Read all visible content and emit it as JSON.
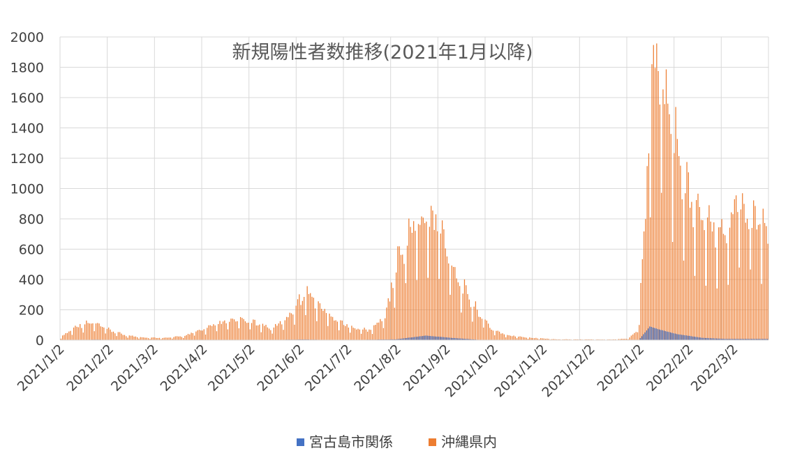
{
  "chart_data": {
    "type": "bar",
    "title": "新規陽性者数推移(2021年1月以降)",
    "xlabel": "",
    "ylabel": "",
    "ylim": [
      0,
      2000
    ],
    "yticks": [
      0,
      200,
      400,
      600,
      800,
      1000,
      1200,
      1400,
      1600,
      1800,
      2000
    ],
    "grid": true,
    "legend_position": "bottom",
    "x_start": "2021-01-02",
    "x_tick_labels": [
      "2021/1/2",
      "2021/2/2",
      "2021/3/2",
      "2021/4/2",
      "2021/5/2",
      "2021/6/2",
      "2021/7/2",
      "2021/8/2",
      "2021/9/2",
      "2021/10/2",
      "2021/11/2",
      "2021/12/2",
      "2022/1/2",
      "2022/2/2",
      "2022/3/2"
    ],
    "series": [
      {
        "name": "宮古島市関係",
        "color": "#4472c4",
        "profile": [
          [
            "2021-01-02",
            0
          ],
          [
            "2021-01-25",
            3
          ],
          [
            "2021-02-10",
            0
          ],
          [
            "2021-05-20",
            2
          ],
          [
            "2021-06-05",
            4
          ],
          [
            "2021-06-25",
            0
          ],
          [
            "2021-08-01",
            5
          ],
          [
            "2021-08-20",
            30
          ],
          [
            "2021-09-05",
            15
          ],
          [
            "2021-09-25",
            0
          ],
          [
            "2022-01-01",
            0
          ],
          [
            "2022-01-08",
            90
          ],
          [
            "2022-01-14",
            70
          ],
          [
            "2022-01-25",
            40
          ],
          [
            "2022-02-10",
            15
          ],
          [
            "2022-02-25",
            8
          ],
          [
            "2022-03-15",
            8
          ],
          [
            "2022-03-23",
            8
          ]
        ]
      },
      {
        "name": "沖縄県内",
        "color": "#ed7d31",
        "profile": [
          [
            "2021-01-02",
            20
          ],
          [
            "2021-01-12",
            90
          ],
          [
            "2021-01-22",
            110
          ],
          [
            "2021-02-02",
            60
          ],
          [
            "2021-02-12",
            30
          ],
          [
            "2021-02-25",
            15
          ],
          [
            "2021-03-10",
            15
          ],
          [
            "2021-03-20",
            25
          ],
          [
            "2021-04-02",
            70
          ],
          [
            "2021-04-15",
            115
          ],
          [
            "2021-04-25",
            130
          ],
          [
            "2021-05-08",
            100
          ],
          [
            "2021-05-15",
            70
          ],
          [
            "2021-05-25",
            150
          ],
          [
            "2021-06-01",
            250
          ],
          [
            "2021-06-06",
            310
          ],
          [
            "2021-06-12",
            230
          ],
          [
            "2021-06-20",
            160
          ],
          [
            "2021-07-01",
            90
          ],
          [
            "2021-07-15",
            60
          ],
          [
            "2021-07-25",
            150
          ],
          [
            "2021-08-02",
            500
          ],
          [
            "2021-08-10",
            700
          ],
          [
            "2021-08-20",
            760
          ],
          [
            "2021-08-27",
            740
          ],
          [
            "2021-09-02",
            580
          ],
          [
            "2021-09-10",
            360
          ],
          [
            "2021-09-20",
            200
          ],
          [
            "2021-09-30",
            70
          ],
          [
            "2021-10-10",
            30
          ],
          [
            "2021-10-25",
            15
          ],
          [
            "2021-11-10",
            5
          ],
          [
            "2021-12-15",
            4
          ],
          [
            "2021-12-25",
            10
          ],
          [
            "2021-12-31",
            60
          ],
          [
            "2022-01-04",
            600
          ],
          [
            "2022-01-07",
            1450
          ],
          [
            "2022-01-12",
            1780
          ],
          [
            "2022-01-20",
            1350
          ],
          [
            "2022-01-28",
            1050
          ],
          [
            "2022-02-05",
            820
          ],
          [
            "2022-02-15",
            700
          ],
          [
            "2022-02-25",
            650
          ],
          [
            "2022-03-05",
            950
          ],
          [
            "2022-03-12",
            800
          ],
          [
            "2022-03-23",
            720
          ]
        ]
      }
    ]
  }
}
